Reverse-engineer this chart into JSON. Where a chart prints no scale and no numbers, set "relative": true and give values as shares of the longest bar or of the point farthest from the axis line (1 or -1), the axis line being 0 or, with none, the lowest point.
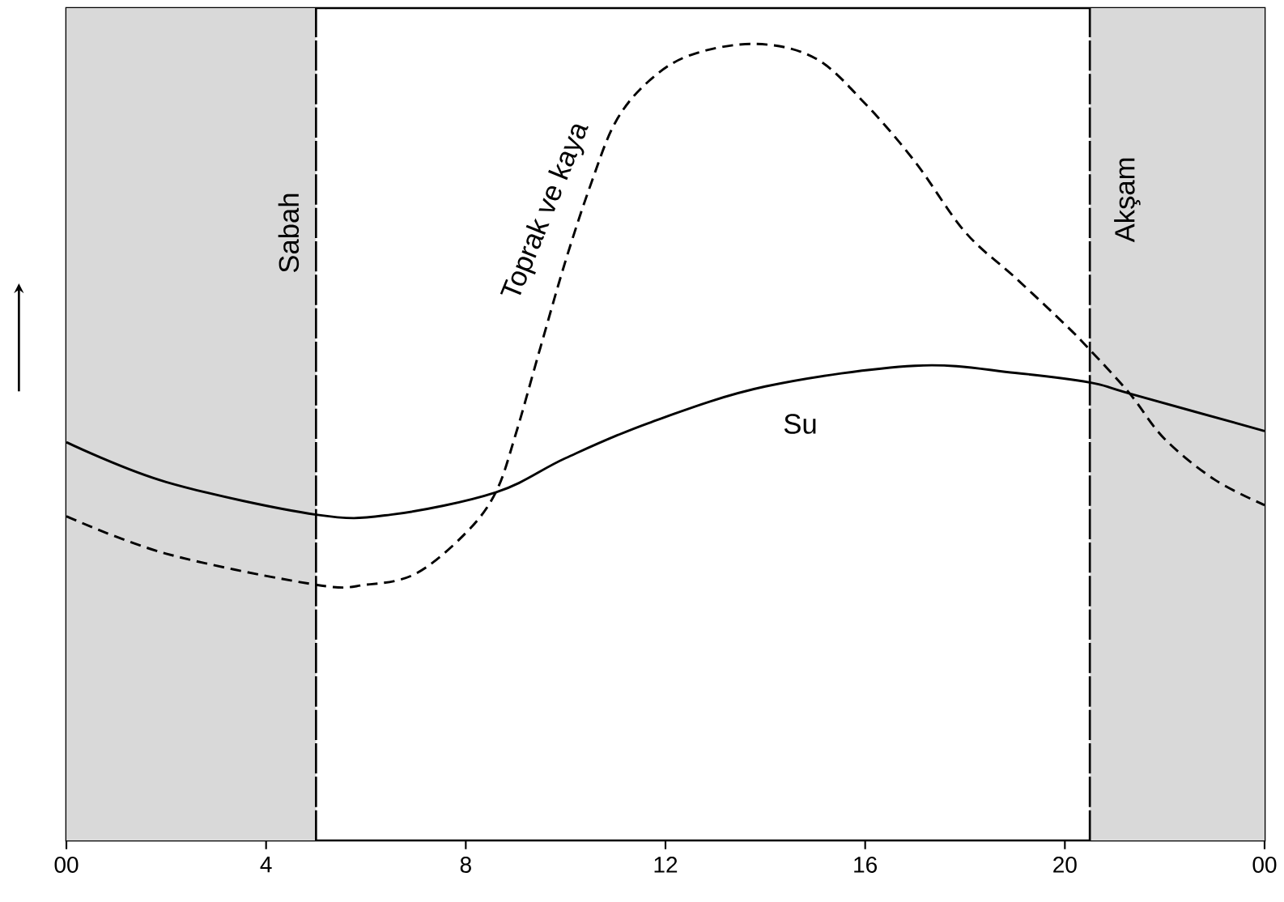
{
  "chart_data": {
    "type": "line",
    "relative": true,
    "legend": false,
    "grid": false,
    "xlim": [
      0,
      24
    ],
    "xticks": [
      {
        "value": 0,
        "label": "00"
      },
      4,
      8,
      12,
      16,
      20,
      {
        "value": 24,
        "label": "00"
      }
    ],
    "series": [
      {
        "name": "Su",
        "color": "#000000",
        "line_style": "solid",
        "x": [
          0,
          2,
          5,
          6.5,
          8.6,
          10,
          11.66,
          14,
          17,
          19,
          20.5,
          21.3,
          24
        ],
        "values": [
          0.5,
          0.45,
          0.409,
          0.409,
          0.437,
          0.48,
          0.524,
          0.57,
          0.596,
          0.587,
          0.575,
          0.561,
          0.514
        ]
      },
      {
        "name": "Toprak ve kaya",
        "color": "#000000",
        "line_style": "dashed",
        "x": [
          0,
          2,
          5,
          6,
          7,
          8,
          8.6,
          9,
          9.5,
          10,
          10.5,
          11,
          11.66,
          12.5,
          13.8,
          15,
          16,
          17,
          18,
          19,
          20,
          20.5,
          21.3,
          22,
          23,
          24
        ],
        "values": [
          0.407,
          0.36,
          0.321,
          0.321,
          0.335,
          0.386,
          0.437,
          0.51,
          0.62,
          0.728,
          0.823,
          0.902,
          0.953,
          0.986,
          1,
          0.982,
          0.925,
          0.852,
          0.764,
          0.707,
          0.648,
          0.616,
          0.561,
          0.504,
          0.453,
          0.421
        ]
      }
    ],
    "ref_lines": [
      {
        "axis": "x",
        "value": 5,
        "color": "#000000",
        "line_style": "dashed"
      },
      {
        "axis": "x",
        "value": 20.5,
        "color": "#000000",
        "line_style": "dashed"
      }
    ],
    "bands": [
      {
        "axis": "x",
        "from": 0,
        "to": 5,
        "label": "Sabah",
        "color": "#d9d9d9"
      },
      {
        "axis": "x",
        "from": 20.5,
        "to": 24,
        "label": "Akşam",
        "color": "#d9d9d9"
      }
    ]
  }
}
